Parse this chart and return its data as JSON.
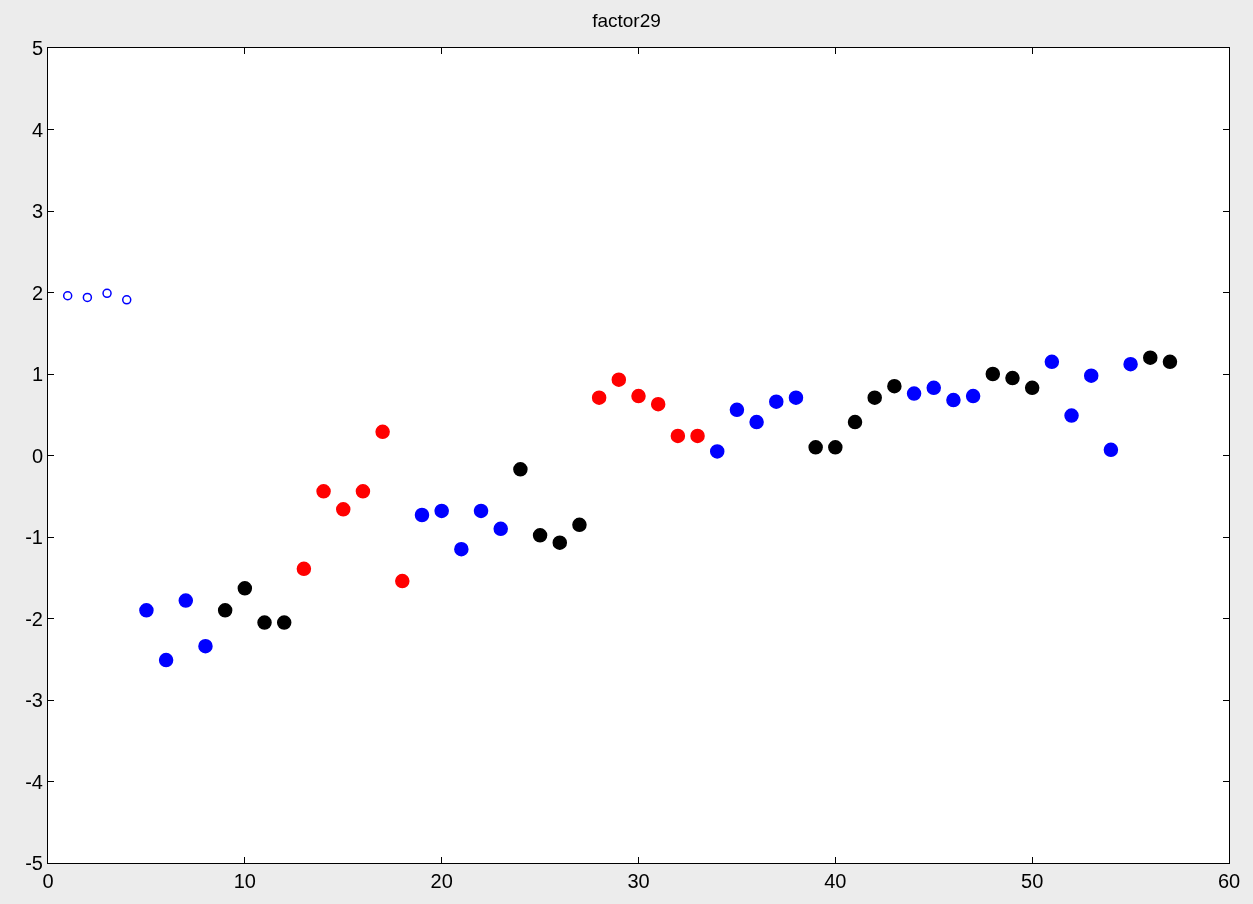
{
  "chart_data": {
    "type": "scatter",
    "title": "factor29",
    "xlim": [
      0,
      60
    ],
    "ylim": [
      -5,
      5
    ],
    "xticks": [
      0,
      10,
      20,
      30,
      40,
      50,
      60
    ],
    "yticks": [
      -5,
      -4,
      -3,
      -2,
      -1,
      0,
      1,
      2,
      3,
      4,
      5
    ],
    "marker": "circle",
    "series": [
      {
        "color": "#0000ff",
        "marker": "circle-open",
        "x": [
          1,
          2,
          3,
          4
        ],
        "values": [
          1.96,
          1.94,
          1.99,
          1.91
        ]
      },
      {
        "color": "#0000ff",
        "x": [
          5,
          6,
          7,
          8,
          19,
          20,
          21,
          22,
          23,
          34,
          35,
          36,
          37,
          38,
          44,
          45,
          46,
          47,
          51,
          52,
          53,
          54,
          55
        ],
        "values": [
          -1.9,
          -2.51,
          -1.78,
          -2.34,
          -0.73,
          -0.68,
          -1.15,
          -0.68,
          -0.9,
          0.05,
          0.56,
          0.41,
          0.66,
          0.71,
          0.76,
          0.83,
          0.68,
          0.73,
          1.15,
          0.49,
          0.98,
          0.07,
          1.12
        ]
      },
      {
        "color": "#000000",
        "x": [
          9,
          10,
          11,
          12,
          24,
          25,
          26,
          27,
          39,
          40,
          41,
          42,
          43,
          48,
          49,
          50,
          56,
          57
        ],
        "values": [
          -1.9,
          -1.63,
          -2.05,
          -2.05,
          -0.17,
          -0.98,
          -1.07,
          -0.85,
          0.1,
          0.1,
          0.41,
          0.71,
          0.85,
          1.0,
          0.95,
          0.83,
          1.2,
          1.15
        ]
      },
      {
        "color": "#ff0000",
        "x": [
          13,
          14,
          15,
          16,
          17,
          18,
          28,
          29,
          30,
          31,
          32,
          33
        ],
        "values": [
          -1.39,
          -0.44,
          -0.66,
          -0.44,
          0.29,
          -1.54,
          0.71,
          0.93,
          0.73,
          0.63,
          0.24,
          0.24
        ]
      }
    ]
  }
}
